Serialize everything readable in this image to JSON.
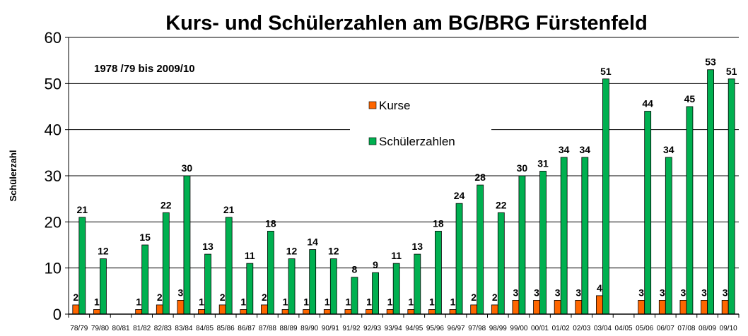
{
  "chart_data": {
    "type": "bar",
    "title": "Kurs- und Schülerzahlen am BG/BRG Fürstenfeld",
    "subtitle": "1978 /79 bis 2009/10",
    "ylabel": "Schülerzahl",
    "xlabel": "",
    "ylim": [
      0,
      60
    ],
    "yticks": [
      0,
      10,
      20,
      30,
      40,
      50,
      60
    ],
    "grid": true,
    "legend_placement": "top-center",
    "categories": [
      "78/79",
      "79/80",
      "80/81",
      "81/82",
      "82/83",
      "83/84",
      "84/85",
      "85/86",
      "86/87",
      "87/88",
      "88/89",
      "89/90",
      "90/91",
      "91/92",
      "92/93",
      "93/94",
      "94/95",
      "95/96",
      "96/97",
      "97/98",
      "98/99",
      "99/00",
      "00/01",
      "01/02",
      "02/03",
      "03/04",
      "04/05",
      "05/06",
      "06/07",
      "07/08",
      "08/09",
      "09/10"
    ],
    "series": [
      {
        "name": "Kurse",
        "color": "#ff6600",
        "values": [
          2,
          1,
          null,
          1,
          2,
          3,
          1,
          2,
          1,
          2,
          1,
          1,
          1,
          1,
          1,
          1,
          1,
          1,
          1,
          2,
          2,
          3,
          3,
          3,
          3,
          4,
          null,
          3,
          3,
          3,
          3,
          3
        ]
      },
      {
        "name": "Schülerzahlen",
        "color": "#00b050",
        "values": [
          21,
          12,
          null,
          15,
          22,
          30,
          13,
          21,
          11,
          18,
          12,
          14,
          12,
          8,
          9,
          11,
          13,
          18,
          24,
          28,
          22,
          30,
          31,
          34,
          34,
          51,
          null,
          44,
          34,
          45,
          53,
          51
        ]
      }
    ]
  }
}
